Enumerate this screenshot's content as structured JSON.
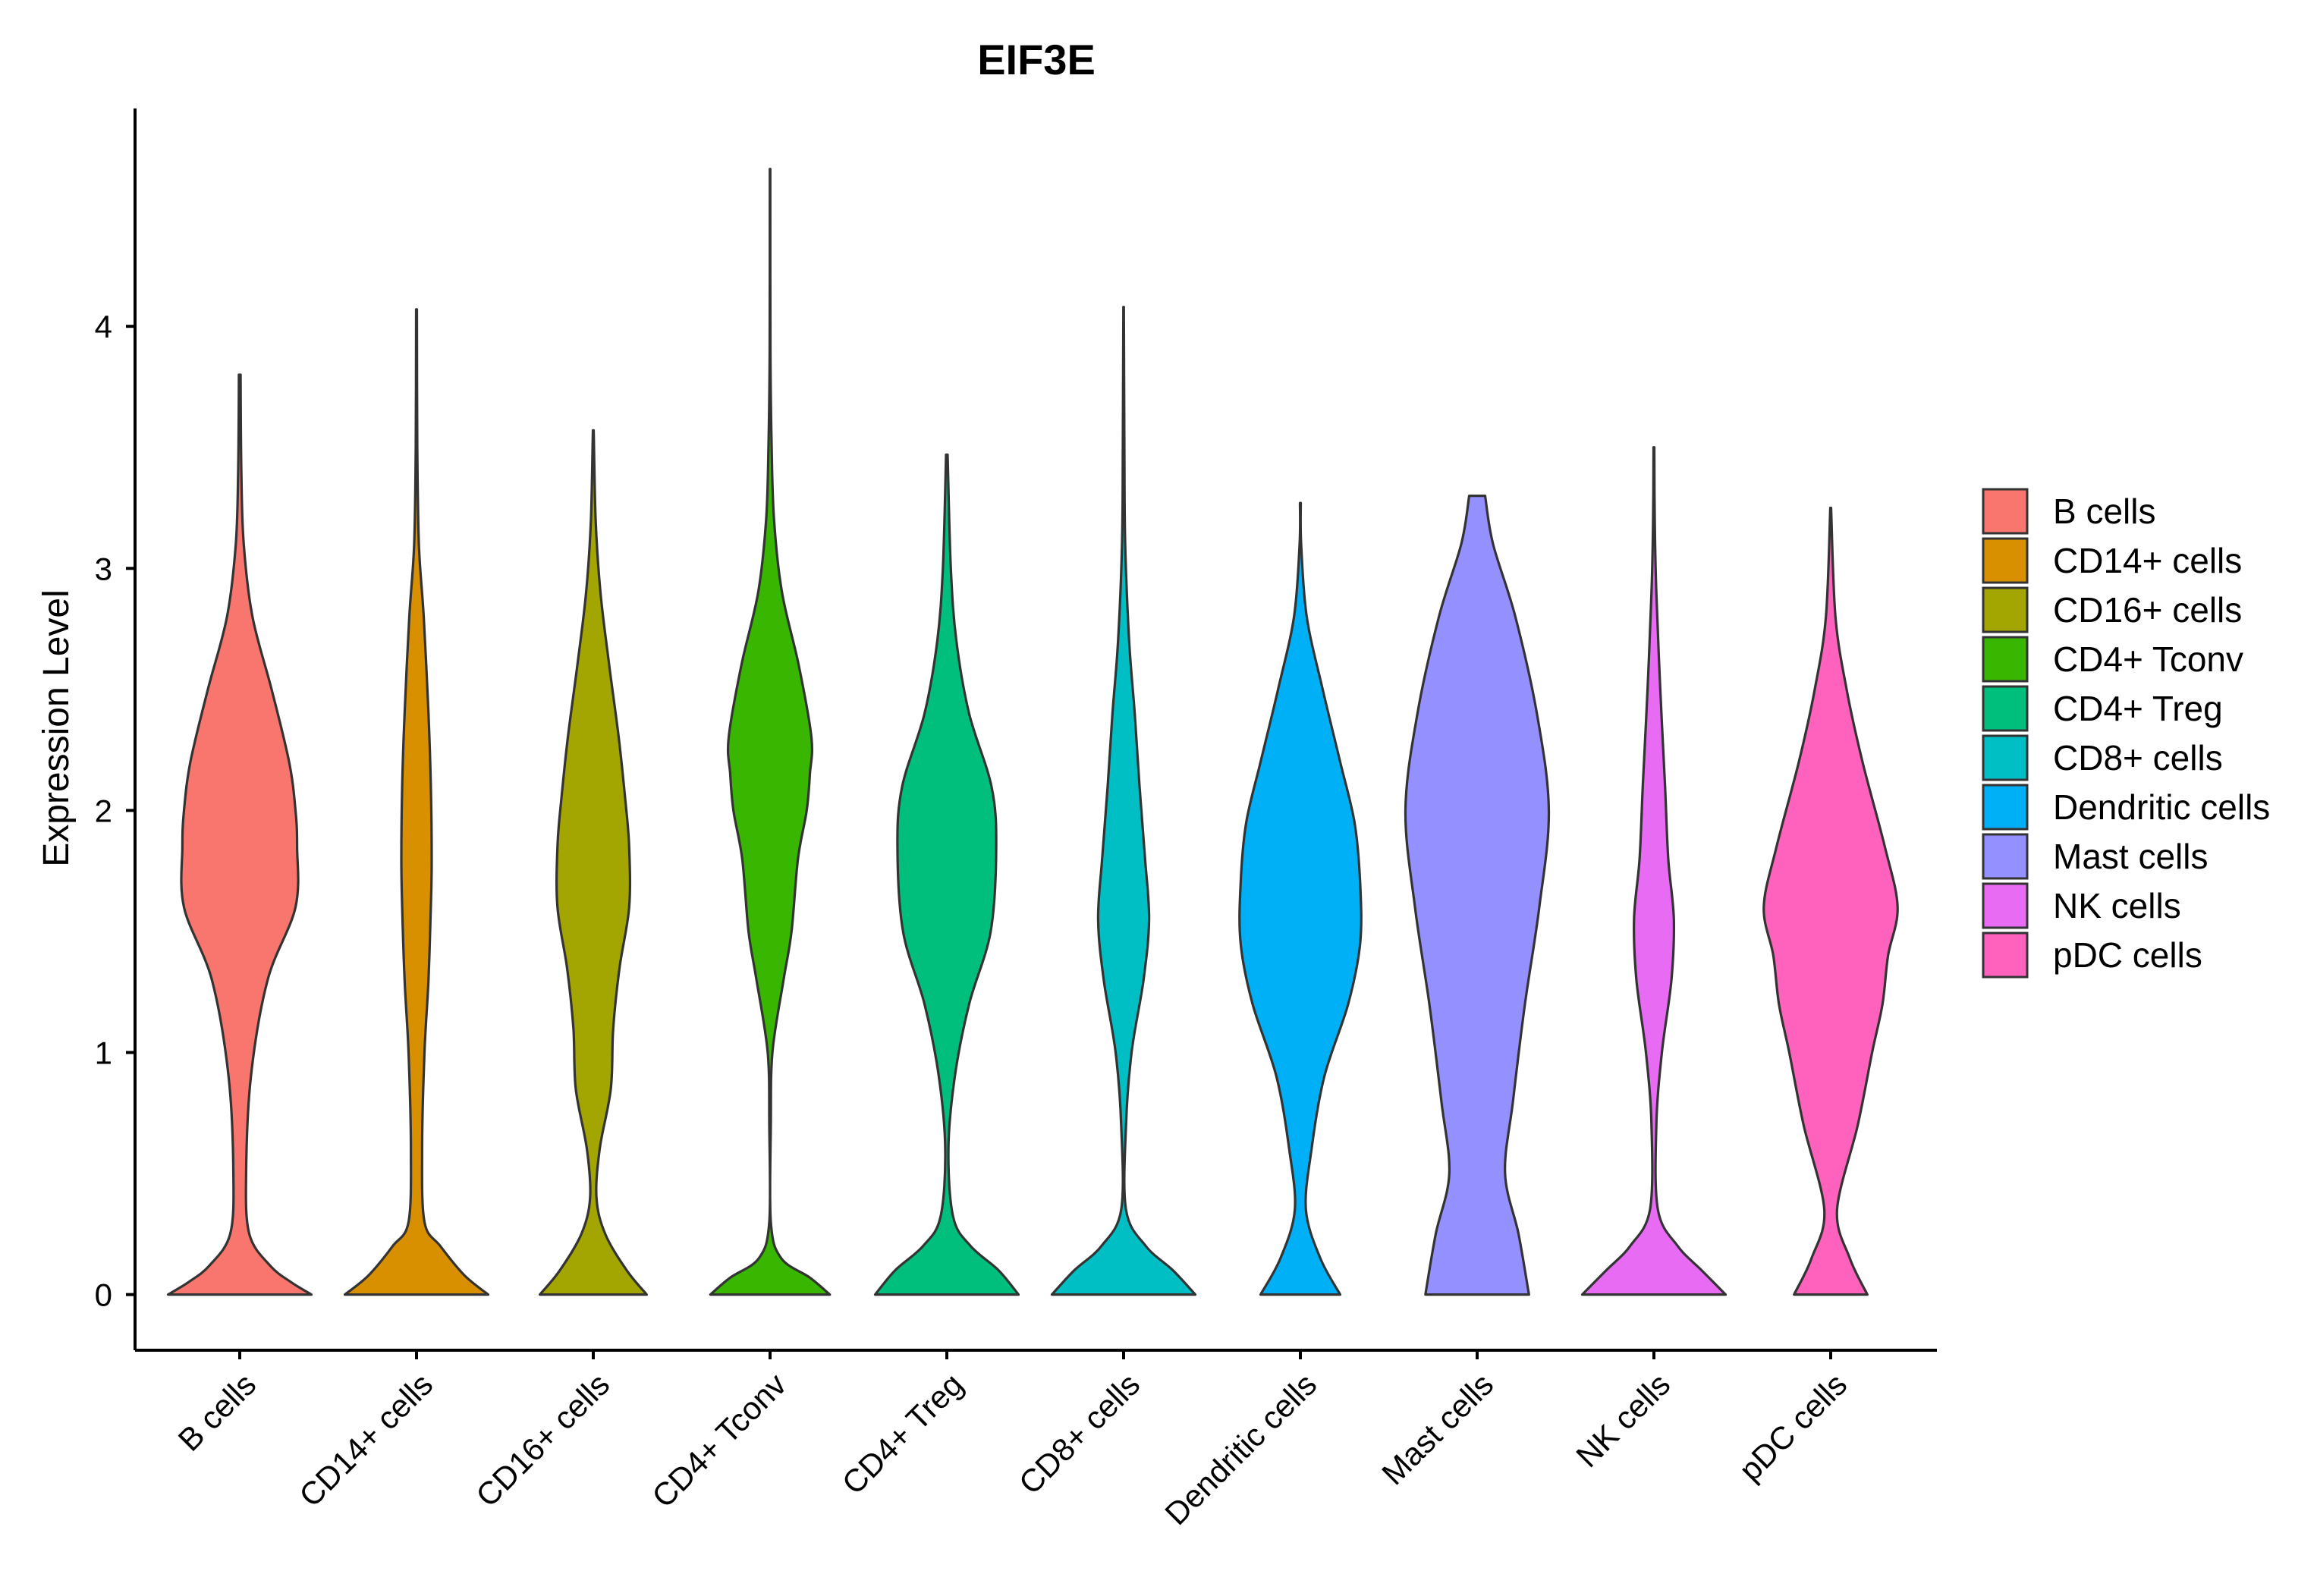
{
  "chart_data": {
    "type": "violin",
    "title": "EIF3E",
    "xlabel": "",
    "ylabel": "Expression Level",
    "ylim": [
      -0.23,
      4.9
    ],
    "yticks": [
      0,
      1,
      2,
      3,
      4
    ],
    "grid": false,
    "legend_position": "right",
    "categories": [
      "B cells",
      "CD14+ cells",
      "CD16+ cells",
      "CD4+ Tconv",
      "CD4+ Treg",
      "CD8+ cells",
      "Dendritic cells",
      "Mast cells",
      "NK cells",
      "pDC cells"
    ],
    "colors": [
      "#F8766D",
      "#D89000",
      "#A3A500",
      "#39B600",
      "#00BF7D",
      "#00BFC4",
      "#00B0F6",
      "#9590FF",
      "#E76BF3",
      "#FF62BC"
    ],
    "series": [
      {
        "name": "B cells",
        "max": 3.8,
        "density": [
          [
            0,
            0.9
          ],
          [
            0.05,
            0.65
          ],
          [
            0.12,
            0.38
          ],
          [
            0.25,
            0.12
          ],
          [
            0.5,
            0.08
          ],
          [
            0.9,
            0.14
          ],
          [
            1.3,
            0.35
          ],
          [
            1.6,
            0.7
          ],
          [
            1.85,
            0.72
          ],
          [
            2.0,
            0.7
          ],
          [
            2.2,
            0.62
          ],
          [
            2.5,
            0.4
          ],
          [
            2.8,
            0.16
          ],
          [
            3.1,
            0.05
          ],
          [
            3.4,
            0.02
          ],
          [
            3.8,
            0.01
          ]
        ]
      },
      {
        "name": "CD14+ cells",
        "max": 4.07,
        "density": [
          [
            0,
            0.9
          ],
          [
            0.08,
            0.6
          ],
          [
            0.2,
            0.3
          ],
          [
            0.3,
            0.1
          ],
          [
            0.6,
            0.07
          ],
          [
            1.0,
            0.1
          ],
          [
            1.3,
            0.15
          ],
          [
            1.6,
            0.18
          ],
          [
            1.8,
            0.19
          ],
          [
            2.1,
            0.18
          ],
          [
            2.4,
            0.15
          ],
          [
            2.8,
            0.09
          ],
          [
            3.1,
            0.03
          ],
          [
            3.5,
            0.01
          ],
          [
            4.07,
            0.005
          ]
        ]
      },
      {
        "name": "CD16+ cells",
        "max": 3.57,
        "density": [
          [
            0,
            0.67
          ],
          [
            0.1,
            0.42
          ],
          [
            0.25,
            0.15
          ],
          [
            0.4,
            0.04
          ],
          [
            0.6,
            0.08
          ],
          [
            0.85,
            0.22
          ],
          [
            1.1,
            0.25
          ],
          [
            1.35,
            0.33
          ],
          [
            1.6,
            0.45
          ],
          [
            1.85,
            0.45
          ],
          [
            2.05,
            0.4
          ],
          [
            2.3,
            0.32
          ],
          [
            2.6,
            0.2
          ],
          [
            2.9,
            0.09
          ],
          [
            3.2,
            0.03
          ],
          [
            3.57,
            0.005
          ]
        ]
      },
      {
        "name": "CD4+ Tconv",
        "max": 4.65,
        "density": [
          [
            0,
            0.75
          ],
          [
            0.07,
            0.5
          ],
          [
            0.15,
            0.14
          ],
          [
            0.3,
            0.01
          ],
          [
            0.7,
            0.01
          ],
          [
            1.0,
            0.03
          ],
          [
            1.3,
            0.17
          ],
          [
            1.5,
            0.27
          ],
          [
            1.8,
            0.35
          ],
          [
            2.0,
            0.46
          ],
          [
            2.15,
            0.5
          ],
          [
            2.3,
            0.52
          ],
          [
            2.6,
            0.36
          ],
          [
            2.9,
            0.15
          ],
          [
            3.2,
            0.05
          ],
          [
            3.5,
            0.02
          ],
          [
            3.9,
            0.005
          ],
          [
            4.65,
            0.003
          ]
        ]
      },
      {
        "name": "CD4+ Treg",
        "max": 3.47,
        "density": [
          [
            0,
            0.9
          ],
          [
            0.1,
            0.65
          ],
          [
            0.2,
            0.3
          ],
          [
            0.32,
            0.08
          ],
          [
            0.6,
            0.02
          ],
          [
            0.9,
            0.1
          ],
          [
            1.2,
            0.28
          ],
          [
            1.5,
            0.55
          ],
          [
            1.85,
            0.62
          ],
          [
            2.1,
            0.56
          ],
          [
            2.4,
            0.28
          ],
          [
            2.7,
            0.12
          ],
          [
            3.0,
            0.05
          ],
          [
            3.47,
            0.01
          ]
        ]
      },
      {
        "name": "CD8+ cells",
        "max": 4.08,
        "density": [
          [
            0,
            0.9
          ],
          [
            0.1,
            0.62
          ],
          [
            0.2,
            0.28
          ],
          [
            0.35,
            0.03
          ],
          [
            0.7,
            0.03
          ],
          [
            1.0,
            0.1
          ],
          [
            1.3,
            0.25
          ],
          [
            1.55,
            0.32
          ],
          [
            1.8,
            0.27
          ],
          [
            2.1,
            0.2
          ],
          [
            2.4,
            0.14
          ],
          [
            2.7,
            0.07
          ],
          [
            3.1,
            0.02
          ],
          [
            3.5,
            0.01
          ],
          [
            4.08,
            0.003
          ]
        ]
      },
      {
        "name": "Dendritic cells",
        "max": 3.27,
        "density": [
          [
            0,
            0.5
          ],
          [
            0.15,
            0.25
          ],
          [
            0.35,
            0.07
          ],
          [
            0.6,
            0.14
          ],
          [
            0.9,
            0.3
          ],
          [
            1.2,
            0.6
          ],
          [
            1.45,
            0.75
          ],
          [
            1.7,
            0.75
          ],
          [
            1.95,
            0.68
          ],
          [
            2.2,
            0.5
          ],
          [
            2.5,
            0.28
          ],
          [
            2.8,
            0.08
          ],
          [
            3.1,
            0.01
          ],
          [
            3.27,
            0.005
          ]
        ]
      },
      {
        "name": "Mast cells",
        "max": 3.3,
        "density": [
          [
            0,
            0.65
          ],
          [
            0.25,
            0.52
          ],
          [
            0.5,
            0.35
          ],
          [
            0.8,
            0.45
          ],
          [
            1.2,
            0.6
          ],
          [
            1.6,
            0.78
          ],
          [
            2.0,
            0.9
          ],
          [
            2.4,
            0.75
          ],
          [
            2.8,
            0.48
          ],
          [
            3.1,
            0.2
          ],
          [
            3.3,
            0.1
          ]
        ]
      },
      {
        "name": "NK cells",
        "max": 3.5,
        "density": [
          [
            0,
            0.9
          ],
          [
            0.1,
            0.6
          ],
          [
            0.2,
            0.3
          ],
          [
            0.35,
            0.05
          ],
          [
            0.7,
            0.03
          ],
          [
            1.0,
            0.1
          ],
          [
            1.3,
            0.22
          ],
          [
            1.55,
            0.25
          ],
          [
            1.8,
            0.18
          ],
          [
            2.1,
            0.14
          ],
          [
            2.5,
            0.08
          ],
          [
            2.9,
            0.03
          ],
          [
            3.2,
            0.01
          ],
          [
            3.5,
            0.005
          ]
        ]
      },
      {
        "name": "pDC cells",
        "max": 3.25,
        "density": [
          [
            0,
            0.46
          ],
          [
            0.15,
            0.24
          ],
          [
            0.35,
            0.08
          ],
          [
            0.7,
            0.34
          ],
          [
            1.0,
            0.52
          ],
          [
            1.2,
            0.65
          ],
          [
            1.4,
            0.72
          ],
          [
            1.6,
            0.84
          ],
          [
            1.85,
            0.68
          ],
          [
            2.2,
            0.4
          ],
          [
            2.5,
            0.2
          ],
          [
            2.8,
            0.06
          ],
          [
            3.25,
            0.005
          ]
        ]
      }
    ]
  }
}
